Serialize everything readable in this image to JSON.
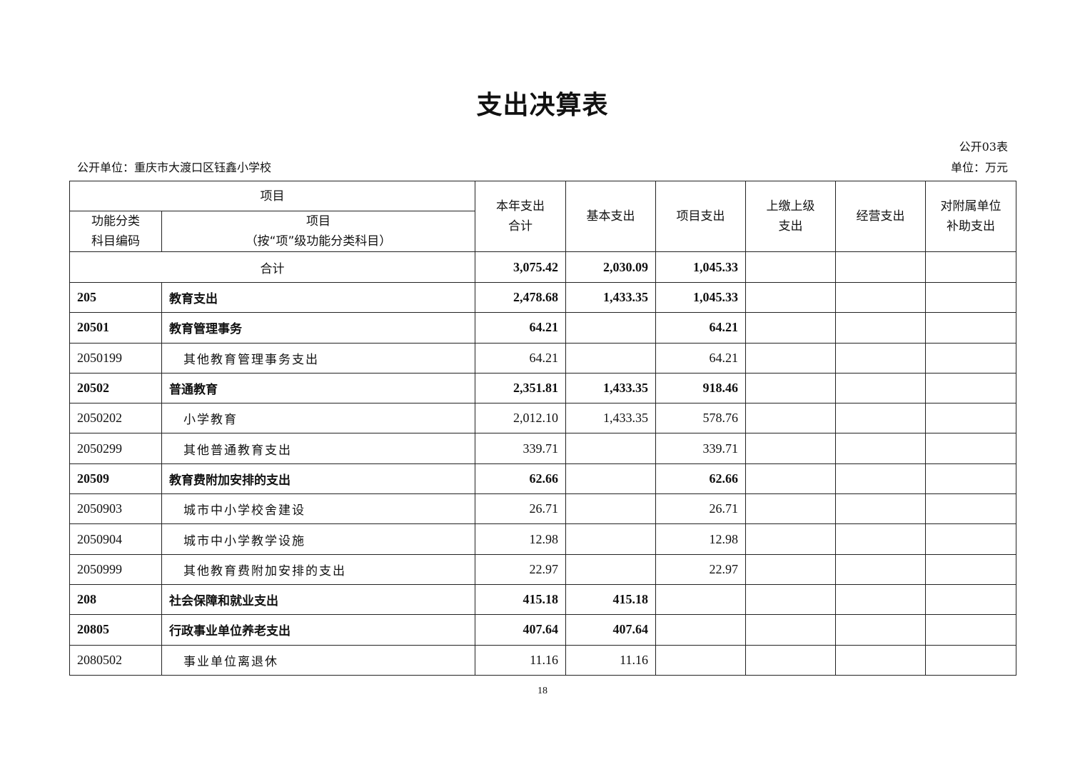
{
  "title": "支出决算表",
  "form_no": "公开03表",
  "unit_name": "公开单位：重庆市大渡口区钰鑫小学校",
  "unit": "单位：万元",
  "headers": {
    "item_group": "项目",
    "code": "功能分类\n科目编码",
    "item_line1": "项目",
    "item_line2": "（按“项”级功能分类科目）",
    "total": "本年支出\n合计",
    "basic": "基本支出",
    "project": "项目支出",
    "upper": "上缴上级\n支出",
    "business": "经营支出",
    "subsidy": "对附属单位\n补助支出"
  },
  "total_row": {
    "label": "合计",
    "total": "3,075.42",
    "basic": "2,030.09",
    "project": "1,045.33",
    "upper": "",
    "business": "",
    "subsidy": ""
  },
  "rows": [
    {
      "code": "205",
      "name": "教育支出",
      "total": "2,478.68",
      "basic": "1,433.35",
      "project": "1,045.33",
      "bold": true
    },
    {
      "code": "20501",
      "name": "教育管理事务",
      "total": "64.21",
      "basic": "",
      "project": "64.21",
      "bold": true
    },
    {
      "code": "2050199",
      "name": "其他教育管理事务支出",
      "total": "64.21",
      "basic": "",
      "project": "64.21",
      "bold": false
    },
    {
      "code": "20502",
      "name": "普通教育",
      "total": "2,351.81",
      "basic": "1,433.35",
      "project": "918.46",
      "bold": true
    },
    {
      "code": "2050202",
      "name": "小学教育",
      "total": "2,012.10",
      "basic": "1,433.35",
      "project": "578.76",
      "bold": false
    },
    {
      "code": "2050299",
      "name": "其他普通教育支出",
      "total": "339.71",
      "basic": "",
      "project": "339.71",
      "bold": false
    },
    {
      "code": "20509",
      "name": "教育费附加安排的支出",
      "total": "62.66",
      "basic": "",
      "project": "62.66",
      "bold": true
    },
    {
      "code": "2050903",
      "name": "城市中小学校舍建设",
      "total": "26.71",
      "basic": "",
      "project": "26.71",
      "bold": false
    },
    {
      "code": "2050904",
      "name": "城市中小学教学设施",
      "total": "12.98",
      "basic": "",
      "project": "12.98",
      "bold": false
    },
    {
      "code": "2050999",
      "name": "其他教育费附加安排的支出",
      "total": "22.97",
      "basic": "",
      "project": "22.97",
      "bold": false
    },
    {
      "code": "208",
      "name": "社会保障和就业支出",
      "total": "415.18",
      "basic": "415.18",
      "project": "",
      "bold": true
    },
    {
      "code": "20805",
      "name": "行政事业单位养老支出",
      "total": "407.64",
      "basic": "407.64",
      "project": "",
      "bold": true
    },
    {
      "code": "2080502",
      "name": "事业单位离退休",
      "total": "11.16",
      "basic": "11.16",
      "project": "",
      "bold": false
    }
  ],
  "page_number": "18"
}
